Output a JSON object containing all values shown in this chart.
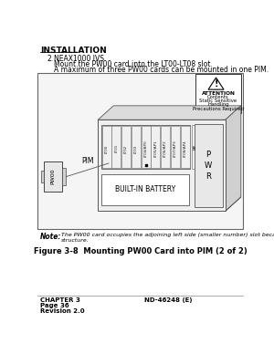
{
  "title_header": "INSTALLATION",
  "section_num": "2.",
  "section_title": "NEAX1000 IVS",
  "section_text1": "Mount the PW00 card into the LT00-LT08 slot.",
  "section_text2": "A maximum of three PW00 cards can be mounted in one PIM.",
  "figure_caption": "Figure 3-8  Mounting PW00 Card into PIM (2 of 2)",
  "note_label": "Note:",
  "note_text": "The PW00 card occupies the adjoining left side (smaller number) slot because of its two-stories\nstructure.",
  "pim_label": "PIM",
  "pw00_label": "PW00",
  "battery_label": "BUILT-IN BATTERY",
  "mp_label": "MP",
  "pwr_label": "P\nW\nR",
  "slots": [
    "LT00",
    "LT01",
    "LT02",
    "LT03",
    "LT04/AP0",
    "LT05/AP1",
    "LT06/AP2",
    "LT07/AP3",
    "LT08/AP4"
  ],
  "attention_lines": [
    "ATTENTION",
    "Contents",
    "Static Sensitive",
    "Handling",
    "Precautions Required"
  ],
  "footer_left1": "CHAPTER 3",
  "footer_left2": "Page 36",
  "footer_left3": "Revision 2.0",
  "footer_right": "ND-46248 (E)",
  "bg_color": "#ffffff"
}
